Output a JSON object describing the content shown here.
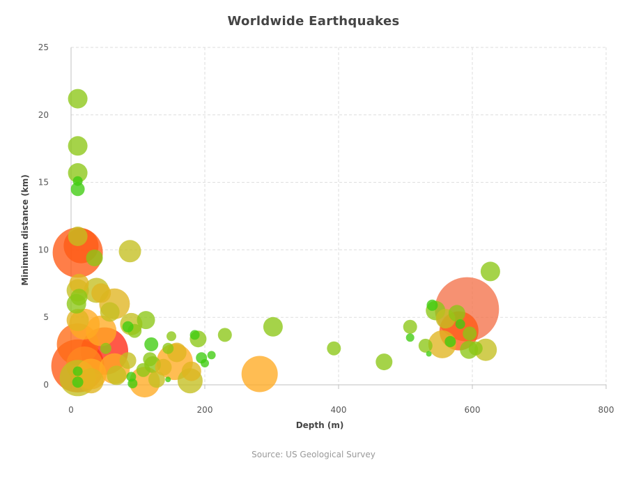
{
  "chart_title": "Worldwide Earthquakes",
  "source_note": "Source: US Geological Survey",
  "chart_data": {
    "type": "scatter",
    "title": "Worldwide Earthquakes",
    "xlabel": "Depth (m)",
    "ylabel": "Minimum distance (km)",
    "xlim": [
      0,
      800
    ],
    "ylim": [
      0,
      25
    ],
    "xticks": [
      0,
      200,
      400,
      600,
      800
    ],
    "yticks": [
      0,
      5,
      10,
      15,
      20,
      25
    ],
    "grid": true,
    "gridStyle": "dashed",
    "pointStyle": "bubble",
    "colorScale": [
      "#33cc11",
      "#99cc11",
      "#cccc33",
      "#ffaa22",
      "#ff6622",
      "#ff2222"
    ],
    "points": [
      {
        "x": 10,
        "y": 21.2,
        "r": 14,
        "c": "#8cc616"
      },
      {
        "x": 10,
        "y": 17.7,
        "r": 14,
        "c": "#8cc616"
      },
      {
        "x": 10,
        "y": 15.7,
        "r": 14,
        "c": "#8cc616"
      },
      {
        "x": 10,
        "y": 15.1,
        "r": 7,
        "c": "#3fcc10"
      },
      {
        "x": 10,
        "y": 14.5,
        "r": 10,
        "c": "#3fcc10"
      },
      {
        "x": 10,
        "y": 11.0,
        "r": 14,
        "c": "#c4bf20"
      },
      {
        "x": 10,
        "y": 9.8,
        "r": 36,
        "c": "#ff5a14"
      },
      {
        "x": 15,
        "y": 10.3,
        "r": 25,
        "c": "#ff5a14"
      },
      {
        "x": 35,
        "y": 9.4,
        "r": 12,
        "c": "#8cc616"
      },
      {
        "x": 88,
        "y": 9.9,
        "r": 16,
        "c": "#c4bf20"
      },
      {
        "x": 12,
        "y": 7.5,
        "r": 14,
        "c": "#e0b520"
      },
      {
        "x": 10,
        "y": 7.0,
        "r": 16,
        "c": "#c4bf20"
      },
      {
        "x": 12,
        "y": 6.5,
        "r": 12,
        "c": "#8cc616"
      },
      {
        "x": 8,
        "y": 6.0,
        "r": 14,
        "c": "#8cc616"
      },
      {
        "x": 38,
        "y": 7.0,
        "r": 18,
        "c": "#c4bf20"
      },
      {
        "x": 45,
        "y": 6.8,
        "r": 14,
        "c": "#e0b520"
      },
      {
        "x": 65,
        "y": 6.0,
        "r": 22,
        "c": "#e0b520"
      },
      {
        "x": 58,
        "y": 5.4,
        "r": 14,
        "c": "#c4bf20"
      },
      {
        "x": 10,
        "y": 4.8,
        "r": 16,
        "c": "#e0b520"
      },
      {
        "x": 20,
        "y": 4.5,
        "r": 22,
        "c": "#ffaa22"
      },
      {
        "x": 45,
        "y": 4.0,
        "r": 22,
        "c": "#ffaa22"
      },
      {
        "x": 90,
        "y": 4.5,
        "r": 16,
        "c": "#c4bf20"
      },
      {
        "x": 112,
        "y": 4.8,
        "r": 13,
        "c": "#8cc616"
      },
      {
        "x": 85,
        "y": 4.3,
        "r": 8,
        "c": "#3fcc10"
      },
      {
        "x": 95,
        "y": 4.0,
        "r": 10,
        "c": "#8cc616"
      },
      {
        "x": 10,
        "y": 3.0,
        "r": 30,
        "c": "#ff6a14"
      },
      {
        "x": 50,
        "y": 2.5,
        "r": 34,
        "c": "#ff2a14"
      },
      {
        "x": 10,
        "y": 1.4,
        "r": 38,
        "c": "#ff5a14"
      },
      {
        "x": 20,
        "y": 1.5,
        "r": 26,
        "c": "#ff8820"
      },
      {
        "x": 10,
        "y": 0.5,
        "r": 26,
        "c": "#c4bf20"
      },
      {
        "x": 30,
        "y": 0.8,
        "r": 22,
        "c": "#ffaa22"
      },
      {
        "x": 30,
        "y": 0.3,
        "r": 18,
        "c": "#e0b520"
      },
      {
        "x": 65,
        "y": 1.2,
        "r": 22,
        "c": "#ffaa22"
      },
      {
        "x": 68,
        "y": 0.7,
        "r": 14,
        "c": "#c4bf20"
      },
      {
        "x": 85,
        "y": 1.8,
        "r": 12,
        "c": "#c4bf20"
      },
      {
        "x": 52,
        "y": 2.7,
        "r": 8,
        "c": "#8cc616"
      },
      {
        "x": 10,
        "y": 1.0,
        "r": 7,
        "c": "#3fcc10"
      },
      {
        "x": 10,
        "y": 0.2,
        "r": 8,
        "c": "#3fcc10"
      },
      {
        "x": 110,
        "y": 0.2,
        "r": 22,
        "c": "#ffaa22"
      },
      {
        "x": 108,
        "y": 1.1,
        "r": 10,
        "c": "#8cc616"
      },
      {
        "x": 118,
        "y": 1.9,
        "r": 10,
        "c": "#8cc616"
      },
      {
        "x": 120,
        "y": 3.0,
        "r": 10,
        "c": "#3fcc10"
      },
      {
        "x": 122,
        "y": 1.5,
        "r": 12,
        "c": "#8cc616"
      },
      {
        "x": 128,
        "y": 0.4,
        "r": 12,
        "c": "#c4bf20"
      },
      {
        "x": 138,
        "y": 1.3,
        "r": 12,
        "c": "#e0b520"
      },
      {
        "x": 145,
        "y": 2.7,
        "r": 8,
        "c": "#8cc616"
      },
      {
        "x": 150,
        "y": 3.6,
        "r": 7,
        "c": "#8cc616"
      },
      {
        "x": 158,
        "y": 2.4,
        "r": 14,
        "c": "#e0b520"
      },
      {
        "x": 155,
        "y": 1.7,
        "r": 26,
        "c": "#ffaa22"
      },
      {
        "x": 178,
        "y": 0.3,
        "r": 18,
        "c": "#c4bf20"
      },
      {
        "x": 180,
        "y": 1.0,
        "r": 14,
        "c": "#e0b520"
      },
      {
        "x": 185,
        "y": 3.7,
        "r": 7,
        "c": "#3fcc10"
      },
      {
        "x": 190,
        "y": 3.4,
        "r": 12,
        "c": "#8cc616"
      },
      {
        "x": 195,
        "y": 2.0,
        "r": 8,
        "c": "#3fcc10"
      },
      {
        "x": 200,
        "y": 1.6,
        "r": 6,
        "c": "#3fcc10"
      },
      {
        "x": 210,
        "y": 2.2,
        "r": 6,
        "c": "#3fcc10"
      },
      {
        "x": 230,
        "y": 3.7,
        "r": 10,
        "c": "#8cc616"
      },
      {
        "x": 90,
        "y": 0.6,
        "r": 7,
        "c": "#3fcc10"
      },
      {
        "x": 92,
        "y": 0.1,
        "r": 7,
        "c": "#3fcc10"
      },
      {
        "x": 145,
        "y": 0.4,
        "r": 4,
        "c": "#3fcc10"
      },
      {
        "x": 282,
        "y": 0.8,
        "r": 26,
        "c": "#ffaa22"
      },
      {
        "x": 302,
        "y": 4.3,
        "r": 14,
        "c": "#8cc616"
      },
      {
        "x": 393,
        "y": 2.7,
        "r": 10,
        "c": "#8cc616"
      },
      {
        "x": 468,
        "y": 1.7,
        "r": 12,
        "c": "#8cc616"
      },
      {
        "x": 507,
        "y": 4.3,
        "r": 10,
        "c": "#8cc616"
      },
      {
        "x": 507,
        "y": 3.5,
        "r": 6,
        "c": "#3fcc10"
      },
      {
        "x": 530,
        "y": 2.9,
        "r": 10,
        "c": "#8cc616"
      },
      {
        "x": 535,
        "y": 2.3,
        "r": 4,
        "c": "#3fcc10"
      },
      {
        "x": 540,
        "y": 5.9,
        "r": 8,
        "c": "#3fcc10"
      },
      {
        "x": 545,
        "y": 5.5,
        "r": 14,
        "c": "#8cc616"
      },
      {
        "x": 560,
        "y": 4.9,
        "r": 14,
        "c": "#c4bf20"
      },
      {
        "x": 580,
        "y": 4.0,
        "r": 28,
        "c": "#ff5a14"
      },
      {
        "x": 555,
        "y": 3.0,
        "r": 20,
        "c": "#e0b520"
      },
      {
        "x": 567,
        "y": 3.2,
        "r": 8,
        "c": "#3fcc10"
      },
      {
        "x": 577,
        "y": 5.3,
        "r": 12,
        "c": "#8cc616"
      },
      {
        "x": 582,
        "y": 4.5,
        "r": 7,
        "c": "#3fcc10"
      },
      {
        "x": 592,
        "y": 5.6,
        "r": 46,
        "c": "#f4724a"
      },
      {
        "x": 595,
        "y": 2.6,
        "r": 13,
        "c": "#8cc616"
      },
      {
        "x": 596,
        "y": 3.8,
        "r": 10,
        "c": "#8cc616"
      },
      {
        "x": 605,
        "y": 2.7,
        "r": 10,
        "c": "#8cc616"
      },
      {
        "x": 620,
        "y": 2.6,
        "r": 16,
        "c": "#c4bf20"
      },
      {
        "x": 627,
        "y": 8.4,
        "r": 14,
        "c": "#8cc616"
      }
    ]
  }
}
